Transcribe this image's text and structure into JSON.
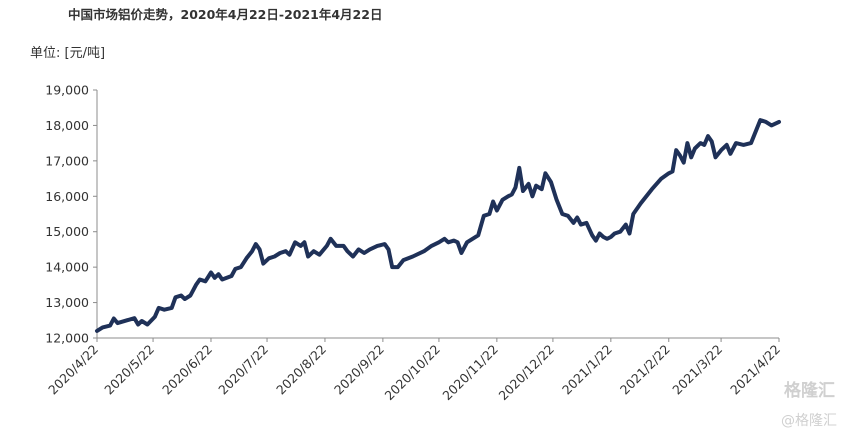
{
  "chart_data": {
    "type": "line",
    "title": "中国市场铝价走势，2020年4月22日-2021年4月22日",
    "unit_label": "单位: [元/吨]",
    "ylim": [
      12000,
      19000
    ],
    "y_ticks": [
      "12,000",
      "13,000",
      "14,000",
      "15,000",
      "16,000",
      "17,000",
      "18,000",
      "19,000"
    ],
    "y_tick_values": [
      12000,
      13000,
      14000,
      15000,
      16000,
      17000,
      18000,
      19000
    ],
    "x_ticks": [
      "2020/4/22",
      "2020/5/22",
      "2020/6/22",
      "2020/7/22",
      "2020/8/22",
      "2020/9/22",
      "2020/10/22",
      "2020/11/22",
      "2020/12/22",
      "2021/1/22",
      "2021/2/22",
      "2021/3/22",
      "2021/4/22"
    ],
    "x_tick_dates": [
      "2020-04-22",
      "2020-05-22",
      "2020-06-22",
      "2020-07-22",
      "2020-08-22",
      "2020-09-22",
      "2020-10-22",
      "2020-11-22",
      "2020-12-22",
      "2021-01-22",
      "2021-02-22",
      "2021-03-22",
      "2021-04-22"
    ],
    "series": [
      {
        "color": "#1f3158",
        "points": [
          [
            "2020-04-22",
            12200
          ],
          [
            "2020-04-25",
            12300
          ],
          [
            "2020-04-29",
            12350
          ],
          [
            "2020-05-01",
            12550
          ],
          [
            "2020-05-03",
            12420
          ],
          [
            "2020-05-08",
            12500
          ],
          [
            "2020-05-12",
            12560
          ],
          [
            "2020-05-14",
            12380
          ],
          [
            "2020-05-16",
            12480
          ],
          [
            "2020-05-19",
            12380
          ],
          [
            "2020-05-23",
            12600
          ],
          [
            "2020-05-25",
            12850
          ],
          [
            "2020-05-28",
            12800
          ],
          [
            "2020-06-01",
            12850
          ],
          [
            "2020-06-03",
            13150
          ],
          [
            "2020-06-06",
            13200
          ],
          [
            "2020-06-08",
            13100
          ],
          [
            "2020-06-11",
            13200
          ],
          [
            "2020-06-14",
            13500
          ],
          [
            "2020-06-16",
            13650
          ],
          [
            "2020-06-19",
            13600
          ],
          [
            "2020-06-22",
            13850
          ],
          [
            "2020-06-24",
            13700
          ],
          [
            "2020-06-26",
            13800
          ],
          [
            "2020-06-28",
            13650
          ],
          [
            "2020-07-03",
            13750
          ],
          [
            "2020-07-05",
            13950
          ],
          [
            "2020-07-08",
            14000
          ],
          [
            "2020-07-11",
            14250
          ],
          [
            "2020-07-14",
            14450
          ],
          [
            "2020-07-16",
            14650
          ],
          [
            "2020-07-18",
            14500
          ],
          [
            "2020-07-20",
            14100
          ],
          [
            "2020-07-23",
            14250
          ],
          [
            "2020-07-26",
            14300
          ],
          [
            "2020-07-29",
            14400
          ],
          [
            "2020-08-01",
            14450
          ],
          [
            "2020-08-03",
            14350
          ],
          [
            "2020-08-06",
            14700
          ],
          [
            "2020-08-09",
            14600
          ],
          [
            "2020-08-11",
            14700
          ],
          [
            "2020-08-13",
            14300
          ],
          [
            "2020-08-16",
            14450
          ],
          [
            "2020-08-19",
            14350
          ],
          [
            "2020-08-23",
            14600
          ],
          [
            "2020-08-25",
            14800
          ],
          [
            "2020-08-28",
            14600
          ],
          [
            "2020-09-01",
            14600
          ],
          [
            "2020-09-03",
            14450
          ],
          [
            "2020-09-06",
            14300
          ],
          [
            "2020-09-09",
            14500
          ],
          [
            "2020-09-12",
            14400
          ],
          [
            "2020-09-15",
            14500
          ],
          [
            "2020-09-19",
            14600
          ],
          [
            "2020-09-23",
            14650
          ],
          [
            "2020-09-25",
            14500
          ],
          [
            "2020-09-27",
            14000
          ],
          [
            "2020-09-30",
            14000
          ],
          [
            "2020-10-03",
            14200
          ],
          [
            "2020-10-08",
            14300
          ],
          [
            "2020-10-14",
            14450
          ],
          [
            "2020-10-18",
            14600
          ],
          [
            "2020-10-22",
            14700
          ],
          [
            "2020-10-25",
            14800
          ],
          [
            "2020-10-27",
            14700
          ],
          [
            "2020-10-30",
            14750
          ],
          [
            "2020-11-01",
            14700
          ],
          [
            "2020-11-03",
            14400
          ],
          [
            "2020-11-06",
            14700
          ],
          [
            "2020-11-09",
            14800
          ],
          [
            "2020-11-12",
            14900
          ],
          [
            "2020-11-15",
            15450
          ],
          [
            "2020-11-18",
            15500
          ],
          [
            "2020-11-20",
            15850
          ],
          [
            "2020-11-22",
            15600
          ],
          [
            "2020-11-25",
            15900
          ],
          [
            "2020-11-28",
            16000
          ],
          [
            "2020-11-30",
            16050
          ],
          [
            "2020-12-02",
            16250
          ],
          [
            "2020-12-04",
            16800
          ],
          [
            "2020-12-06",
            16150
          ],
          [
            "2020-12-09",
            16350
          ],
          [
            "2020-12-11",
            16000
          ],
          [
            "2020-12-13",
            16300
          ],
          [
            "2020-12-16",
            16200
          ],
          [
            "2020-12-18",
            16650
          ],
          [
            "2020-12-21",
            16400
          ],
          [
            "2020-12-24",
            15900
          ],
          [
            "2020-12-27",
            15500
          ],
          [
            "2020-12-30",
            15450
          ],
          [
            "2021-01-02",
            15250
          ],
          [
            "2021-01-04",
            15400
          ],
          [
            "2021-01-06",
            15200
          ],
          [
            "2021-01-09",
            15250
          ],
          [
            "2021-01-12",
            14900
          ],
          [
            "2021-01-14",
            14750
          ],
          [
            "2021-01-16",
            14950
          ],
          [
            "2021-01-18",
            14850
          ],
          [
            "2021-01-20",
            14800
          ],
          [
            "2021-01-22",
            14850
          ],
          [
            "2021-01-24",
            14950
          ],
          [
            "2021-01-27",
            15000
          ],
          [
            "2021-01-30",
            15200
          ],
          [
            "2021-02-01",
            14950
          ],
          [
            "2021-02-03",
            15500
          ],
          [
            "2021-02-07",
            15800
          ],
          [
            "2021-02-13",
            16200
          ],
          [
            "2021-02-18",
            16500
          ],
          [
            "2021-02-22",
            16650
          ],
          [
            "2021-02-24",
            16700
          ],
          [
            "2021-02-26",
            17300
          ],
          [
            "2021-02-28",
            17150
          ],
          [
            "2021-03-02",
            16950
          ],
          [
            "2021-03-04",
            17500
          ],
          [
            "2021-03-06",
            17100
          ],
          [
            "2021-03-08",
            17350
          ],
          [
            "2021-03-11",
            17500
          ],
          [
            "2021-03-13",
            17450
          ],
          [
            "2021-03-15",
            17700
          ],
          [
            "2021-03-17",
            17550
          ],
          [
            "2021-03-19",
            17100
          ],
          [
            "2021-03-22",
            17300
          ],
          [
            "2021-03-25",
            17450
          ],
          [
            "2021-03-27",
            17200
          ],
          [
            "2021-03-30",
            17500
          ],
          [
            "2021-04-03",
            17450
          ],
          [
            "2021-04-07",
            17500
          ],
          [
            "2021-04-12",
            18150
          ],
          [
            "2021-04-15",
            18100
          ],
          [
            "2021-04-18",
            18000
          ],
          [
            "2021-04-22",
            18100
          ]
        ]
      }
    ]
  },
  "watermark": {
    "line1": "格隆汇",
    "line2": "@格隆汇"
  }
}
